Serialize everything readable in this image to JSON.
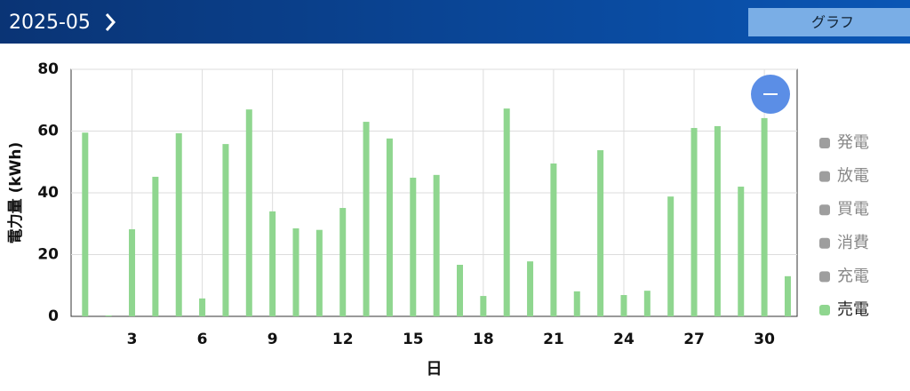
{
  "header": {
    "title": "2025-05",
    "button": "グラフ"
  },
  "chart_data": {
    "type": "bar",
    "ylabel": "電力量 (kWh)",
    "xlabel": "日",
    "x": [
      1,
      2,
      3,
      4,
      5,
      6,
      7,
      8,
      9,
      10,
      11,
      12,
      13,
      14,
      15,
      16,
      17,
      18,
      19,
      20,
      21,
      22,
      23,
      24,
      25,
      26,
      27,
      28,
      29,
      30,
      31
    ],
    "xlim": [
      0.4,
      31.4
    ],
    "xticks": [
      3,
      6,
      9,
      12,
      15,
      18,
      21,
      24,
      27,
      30
    ],
    "ylim": [
      0,
      80
    ],
    "yticks": [
      0,
      20,
      40,
      60,
      80
    ],
    "grid": true,
    "legend": "right",
    "series": [
      {
        "name": "発電",
        "color": "#9e9e9e",
        "hidden": true
      },
      {
        "name": "放電",
        "color": "#9e9e9e",
        "hidden": true
      },
      {
        "name": "買電",
        "color": "#9e9e9e",
        "hidden": true
      },
      {
        "name": "消費",
        "color": "#9e9e9e",
        "hidden": true
      },
      {
        "name": "充電",
        "color": "#9e9e9e",
        "hidden": true
      },
      {
        "name": "売電",
        "color": "#8fd68f",
        "values": [
          59.5,
          0.3,
          28.2,
          45.2,
          59.3,
          5.8,
          55.8,
          67,
          34,
          28.5,
          28,
          35.1,
          63,
          57.6,
          44.9,
          45.8,
          16.7,
          6.6,
          67.3,
          17.8,
          49.5,
          8.1,
          53.8,
          6.9,
          8.3,
          38.8,
          61,
          61.6,
          42,
          64.2,
          13
        ]
      }
    ]
  }
}
